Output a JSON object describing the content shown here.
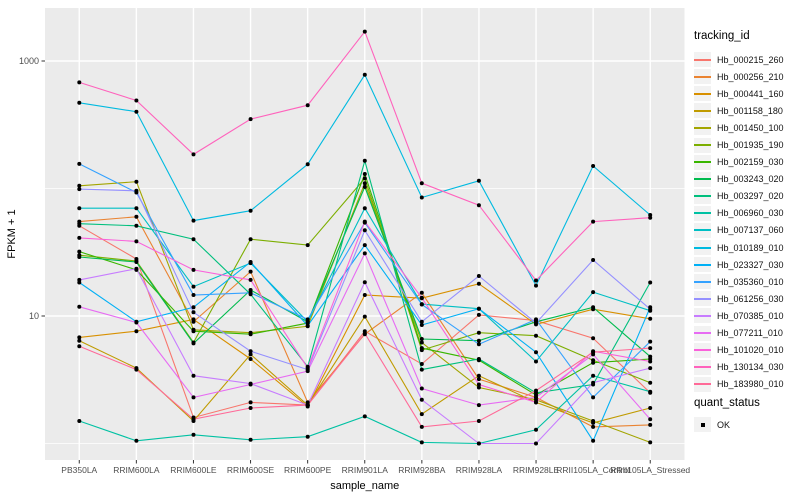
{
  "figure": {
    "background": "#FFFFFF",
    "panel_background": "#EBEBEB",
    "gridline_color": "#FFFFFF",
    "tick_color": "#333333",
    "axis_text_color": "#4D4D4D",
    "axis_title_color": "#000000",
    "point_color": "#000000"
  },
  "chart_data": {
    "type": "line",
    "title": "",
    "xlabel": "sample_name",
    "ylabel": "FPKM + 1",
    "y_scale": "log10",
    "ylim": [
      0.85,
      2800
    ],
    "grid": true,
    "legend_position": "right",
    "y_ticks": [
      {
        "value": 10,
        "label": "10"
      },
      {
        "value": 1000,
        "label": "1000"
      }
    ],
    "y_minor_gridlines": [
      1,
      100
    ],
    "categories": [
      "PB350LA",
      "RRIM600LA",
      "RRIM600LE",
      "RRIM600SE",
      "RRIM600PE",
      "RRIM901LA",
      "RRIM928BA",
      "RRIM928LA",
      "RRIM928LE",
      "RRII105LA_Control",
      "RRII105LA_Stressed"
    ],
    "series": [
      {
        "name": "Hb_000215_260",
        "color": "#F8766D",
        "values": [
          51,
          28,
          1.6,
          2.1,
          2.0,
          7.6,
          4.2,
          10.2,
          9.2,
          6.7,
          2.5
        ]
      },
      {
        "name": "Hb_000256_210",
        "color": "#EA8331",
        "values": [
          55,
          60,
          9.0,
          22.3,
          2.1,
          7.2,
          15.2,
          3.2,
          2.3,
          1.35,
          1.4
        ]
      },
      {
        "name": "Hb_000441_160",
        "color": "#D89000",
        "values": [
          6.8,
          7.6,
          9.4,
          4.6,
          1.95,
          14.6,
          13.8,
          17.9,
          8.6,
          11.3,
          9.5
        ]
      },
      {
        "name": "Hb_001158_180",
        "color": "#C09B00",
        "values": [
          6.4,
          3.9,
          1.5,
          5.0,
          2.0,
          9.9,
          1.7,
          3.4,
          2.1,
          1.45,
          1.9
        ]
      },
      {
        "name": "Hb_001450_100",
        "color": "#A3A500",
        "values": [
          105,
          113,
          7.8,
          7.4,
          8.3,
          110,
          6.2,
          2.75,
          2.2,
          1.5,
          1.02
        ]
      },
      {
        "name": "Hb_001935_190",
        "color": "#7CAE00",
        "values": [
          30,
          27,
          6.2,
          40,
          36,
          120,
          5.4,
          7.4,
          7.0,
          4.5,
          3.0
        ]
      },
      {
        "name": "Hb_002159_030",
        "color": "#39B600",
        "values": [
          32,
          23,
          7.6,
          7.2,
          8.8,
          130,
          5.6,
          4.5,
          2.4,
          4.3,
          4.6
        ]
      },
      {
        "name": "Hb_003243_020",
        "color": "#00BB4E",
        "values": [
          29,
          26.5,
          6.1,
          16,
          9.0,
          103,
          6.6,
          6.4,
          9.0,
          11.7,
          4.8
        ]
      },
      {
        "name": "Hb_003297_020",
        "color": "#00BF7D",
        "values": [
          53,
          51,
          40,
          14.8,
          4.0,
          165,
          3.8,
          4.6,
          2.5,
          2.9,
          18.3
        ]
      },
      {
        "name": "Hb_006960_030",
        "color": "#00C1A3",
        "values": [
          1.5,
          1.05,
          1.17,
          1.07,
          1.13,
          1.63,
          1.02,
          1.0,
          1.28,
          3.4,
          2.55
        ]
      },
      {
        "name": "Hb_007137_060",
        "color": "#00BFC4",
        "values": [
          70,
          70,
          17,
          26,
          9.0,
          70,
          12.4,
          11.4,
          4.4,
          15.4,
          11.0
        ]
      },
      {
        "name": "Hb_010189_010",
        "color": "#00BAE0",
        "values": [
          470,
          400,
          56,
          67,
          155,
          780,
          85,
          115,
          17.3,
          150,
          62
        ]
      },
      {
        "name": "Hb_023327_030",
        "color": "#00B0F6",
        "values": [
          18.3,
          9.0,
          11.7,
          26.5,
          8.4,
          36,
          8.5,
          11.4,
          5.2,
          1.05,
          11.7
        ]
      },
      {
        "name": "Hb_035360_010",
        "color": "#35A2FF",
        "values": [
          156,
          93,
          14.6,
          15.2,
          9.4,
          54,
          12.3,
          6.0,
          9.4,
          2.3,
          6.3
        ]
      },
      {
        "name": "Hb_061256_030",
        "color": "#9590FF",
        "values": [
          99,
          96,
          10.7,
          5.3,
          3.8,
          47,
          9.0,
          20.6,
          8.8,
          27.5,
          11.3
        ]
      },
      {
        "name": "Hb_070385_010",
        "color": "#C77CFF",
        "values": [
          19.2,
          23.5,
          3.4,
          2.95,
          2.0,
          18.4,
          2.2,
          1.0,
          1.0,
          3.0,
          3.9
        ]
      },
      {
        "name": "Hb_077211_010",
        "color": "#E76BF3",
        "values": [
          11.8,
          8.9,
          2.3,
          2.9,
          3.7,
          31,
          2.7,
          2.0,
          2.3,
          5.0,
          1.55
        ]
      },
      {
        "name": "Hb_101020_010",
        "color": "#FA62DB",
        "values": [
          41,
          38.5,
          23,
          19.2,
          3.9,
          55,
          13.9,
          2.9,
          2.1,
          5.3,
          4.4
        ]
      },
      {
        "name": "Hb_130134_030",
        "color": "#FF62BC",
        "values": [
          680,
          490,
          185,
          350,
          450,
          1700,
          110,
          74,
          19,
          55,
          59
        ]
      },
      {
        "name": "Hb_183980_010",
        "color": "#FF6A98",
        "values": [
          5.8,
          3.8,
          1.55,
          1.9,
          2.0,
          7.3,
          1.35,
          1.5,
          2.6,
          5.2,
          5.6
        ]
      }
    ]
  },
  "legend": {
    "title": "tracking_id"
  },
  "legend2": {
    "title": "quant_status",
    "items": [
      {
        "label": "OK"
      }
    ]
  }
}
